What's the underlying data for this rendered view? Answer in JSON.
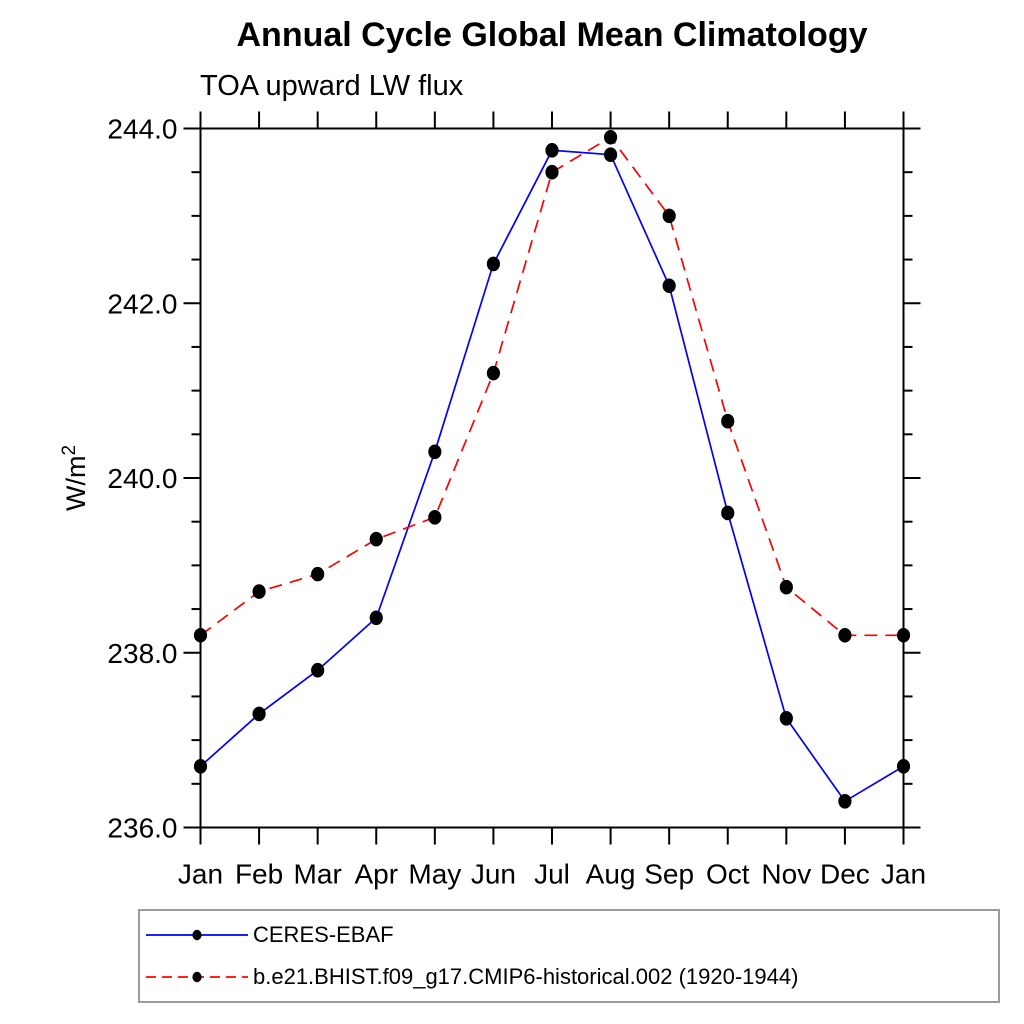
{
  "page": {
    "background": "#ffffff"
  },
  "chart_data": {
    "type": "line",
    "title": "Annual Cycle Global Mean Climatology",
    "subtitle": "TOA upward LW flux",
    "ylabel": "W/m²",
    "xlabel": "",
    "categories": [
      "Jan",
      "Feb",
      "Mar",
      "Apr",
      "May",
      "Jun",
      "Jul",
      "Aug",
      "Sep",
      "Oct",
      "Nov",
      "Dec",
      "Jan"
    ],
    "ylim": [
      236.0,
      244.0
    ],
    "ytick_major_values": [
      236.0,
      238.0,
      240.0,
      242.0,
      244.0
    ],
    "ytick_major_labels": [
      "236.0",
      "238.0",
      "240.0",
      "242.0",
      "244.0"
    ],
    "ytick_minor_step": 0.5,
    "grid": false,
    "plot_border": true,
    "tick_direction": "out",
    "legend_position": "bottom-left-box",
    "marker": {
      "shape": "filled-circle",
      "color": "#000000"
    },
    "axis_color": "#000000",
    "legend_border_color": "#9a9a9a",
    "series": [
      {
        "name": "CERES-EBAF",
        "color": "#0000ff",
        "style": "solid",
        "values": [
          236.7,
          237.3,
          237.8,
          238.4,
          240.3,
          242.45,
          243.75,
          243.7,
          242.2,
          239.6,
          237.25,
          236.3,
          236.7
        ]
      },
      {
        "name": "b.e21.BHIST.f09_g17.CMIP6-historical.002 (1920-1944)",
        "color": "#ff0000",
        "style": "dashed",
        "values": [
          238.2,
          238.7,
          238.9,
          239.3,
          239.55,
          241.2,
          243.5,
          243.9,
          243.0,
          240.65,
          238.75,
          238.2,
          238.2
        ]
      }
    ]
  }
}
